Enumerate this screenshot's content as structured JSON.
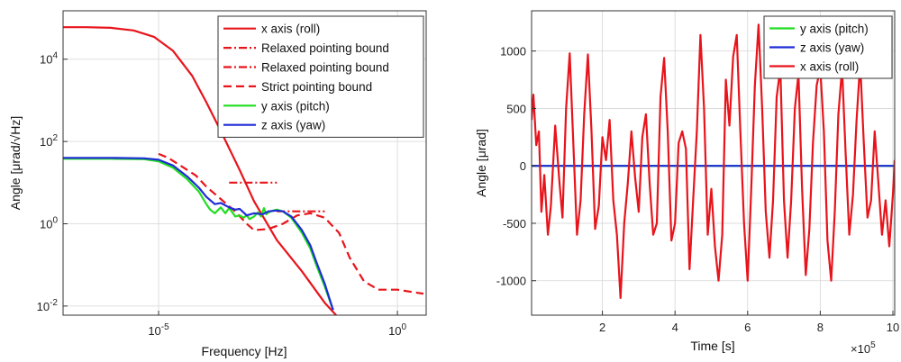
{
  "chart_data": [
    {
      "type": "line",
      "title": "",
      "xlabel": "Frequency [Hz]",
      "ylabel": "Angle [μrad/√Hz]",
      "xscale": "log",
      "yscale": "log",
      "xlim": [
        1e-07,
        4
      ],
      "ylim": [
        0.006,
        150000
      ],
      "grid": true,
      "legend_position": "top-right",
      "x_ticks": [
        {
          "value": 1e-05,
          "base": "10",
          "exp": "-5"
        },
        {
          "value": 1,
          "base": "10",
          "exp": "0"
        }
      ],
      "y_ticks": [
        {
          "value": 0.01,
          "base": "10",
          "exp": "-2"
        },
        {
          "value": 1,
          "base": "10",
          "exp": "0"
        },
        {
          "value": 100,
          "base": "10",
          "exp": "2"
        },
        {
          "value": 10000,
          "base": "10",
          "exp": "4"
        }
      ],
      "series": [
        {
          "name": "x axis (roll)",
          "color": "#e8141b",
          "style": "solid",
          "points": [
            [
              1e-07,
              60000
            ],
            [
              3e-07,
              60000
            ],
            [
              1e-06,
              58000
            ],
            [
              3e-06,
              50000
            ],
            [
              8e-06,
              35000
            ],
            [
              2e-05,
              16000
            ],
            [
              5e-05,
              4000
            ],
            [
              0.0001,
              900
            ],
            [
              0.0002,
              180
            ],
            [
              0.0005,
              20
            ],
            [
              0.001,
              3.5
            ],
            [
              0.003,
              0.4
            ],
            [
              0.01,
              0.07
            ],
            [
              0.03,
              0.012
            ],
            [
              0.06,
              0.005
            ]
          ]
        },
        {
          "name": "Relaxed pointing bound",
          "color": "#e8141b",
          "style": "dashdot",
          "points": [
            [
              0.0003,
              10
            ],
            [
              0.003,
              10
            ]
          ]
        },
        {
          "name": "Relaxed pointing bound",
          "color": "#e8141b",
          "style": "dashdot",
          "points": [
            [
              0.003,
              2
            ],
            [
              0.03,
              2
            ]
          ]
        },
        {
          "name": "Strict pointing bound",
          "color": "#e8141b",
          "style": "dashed",
          "points": [
            [
              1e-05,
              50
            ],
            [
              1.6e-05,
              40
            ],
            [
              3e-05,
              25
            ],
            [
              6e-05,
              15
            ],
            [
              0.0001,
              8
            ],
            [
              0.0002,
              4
            ],
            [
              0.0004,
              2
            ],
            [
              0.0007,
              1
            ],
            [
              0.001,
              0.7
            ],
            [
              0.002,
              0.75
            ],
            [
              0.004,
              1
            ],
            [
              0.008,
              1.6
            ],
            [
              0.015,
              1.8
            ],
            [
              0.03,
              1.4
            ],
            [
              0.06,
              0.6
            ],
            [
              0.1,
              0.15
            ],
            [
              0.2,
              0.04
            ],
            [
              0.4,
              0.025
            ],
            [
              1,
              0.025
            ],
            [
              2,
              0.022
            ],
            [
              3.5,
              0.02
            ]
          ]
        },
        {
          "name": "y axis (pitch)",
          "color": "#22dd22",
          "style": "solid",
          "points": [
            [
              1e-07,
              38
            ],
            [
              1e-06,
              38
            ],
            [
              5e-06,
              37
            ],
            [
              1e-05,
              33
            ],
            [
              2e-05,
              23
            ],
            [
              4e-05,
              12
            ],
            [
              7e-05,
              6
            ],
            [
              0.0001,
              3
            ],
            [
              0.00012,
              2.2
            ],
            [
              0.00015,
              1.8
            ],
            [
              0.0002,
              2.5
            ],
            [
              0.00025,
              1.8
            ],
            [
              0.0003,
              2.4
            ],
            [
              0.00035,
              1.9
            ],
            [
              0.0004,
              1.5
            ],
            [
              0.0005,
              1.6
            ],
            [
              0.0006,
              1.4
            ],
            [
              0.0007,
              1.6
            ],
            [
              0.0008,
              1.3
            ],
            [
              0.001,
              1.5
            ],
            [
              0.0012,
              1.9
            ],
            [
              0.0014,
              1.5
            ],
            [
              0.0016,
              2.4
            ],
            [
              0.0018,
              1.7
            ],
            [
              0.002,
              1.9
            ],
            [
              0.0025,
              2.1
            ],
            [
              0.003,
              2.2
            ],
            [
              0.004,
              2
            ],
            [
              0.006,
              1.4
            ],
            [
              0.01,
              0.6
            ],
            [
              0.015,
              0.25
            ],
            [
              0.02,
              0.1
            ],
            [
              0.03,
              0.03
            ],
            [
              0.045,
              0.008
            ]
          ]
        },
        {
          "name": "z axis (yaw)",
          "color": "#1e2dd6",
          "style": "solid",
          "points": [
            [
              1e-07,
              40
            ],
            [
              1e-06,
              40
            ],
            [
              5e-06,
              39
            ],
            [
              1e-05,
              36
            ],
            [
              2e-05,
              26
            ],
            [
              4e-05,
              14
            ],
            [
              7e-05,
              7.5
            ],
            [
              0.0001,
              4.5
            ],
            [
              0.00015,
              3
            ],
            [
              0.0002,
              3.2
            ],
            [
              0.0003,
              2.5
            ],
            [
              0.0004,
              2.2
            ],
            [
              0.0005,
              2.3
            ],
            [
              0.0007,
              1.6
            ],
            [
              0.001,
              1.8
            ],
            [
              0.0015,
              1.7
            ],
            [
              0.002,
              2
            ],
            [
              0.003,
              2.1
            ],
            [
              0.004,
              2
            ],
            [
              0.006,
              1.5
            ],
            [
              0.01,
              0.7
            ],
            [
              0.015,
              0.3
            ],
            [
              0.02,
              0.12
            ],
            [
              0.03,
              0.035
            ],
            [
              0.045,
              0.008
            ]
          ]
        }
      ]
    },
    {
      "type": "line",
      "title": "",
      "xlabel": "Time [s]",
      "ylabel": "Angle [μrad]",
      "x_multiplier": {
        "base": "×10",
        "exp": "5"
      },
      "xlim": [
        0.05,
        10.05
      ],
      "ylim": [
        -1300,
        1350
      ],
      "grid": true,
      "legend_position": "top-right",
      "x_ticks": [
        2,
        4,
        6,
        8,
        10
      ],
      "y_ticks": [
        -1000,
        -500,
        0,
        500,
        1000
      ],
      "series": [
        {
          "name": "y axis (pitch)",
          "color": "#22dd22",
          "style": "solid",
          "points": [
            [
              0.05,
              0
            ],
            [
              10.05,
              0
            ]
          ]
        },
        {
          "name": "z axis (yaw)",
          "color": "#1e2dd6",
          "style": "solid",
          "points": [
            [
              0.05,
              0
            ],
            [
              10.05,
              0
            ]
          ]
        },
        {
          "name": "x axis (roll)",
          "color": "#e8141b",
          "style": "solid",
          "points": [
            [
              0.05,
              400
            ],
            [
              0.1,
              620
            ],
            [
              0.18,
              180
            ],
            [
              0.25,
              300
            ],
            [
              0.32,
              -400
            ],
            [
              0.4,
              -80
            ],
            [
              0.5,
              -600
            ],
            [
              0.58,
              -350
            ],
            [
              0.7,
              350
            ],
            [
              0.82,
              -150
            ],
            [
              0.9,
              -450
            ],
            [
              1.0,
              500
            ],
            [
              1.1,
              980
            ],
            [
              1.2,
              200
            ],
            [
              1.3,
              -600
            ],
            [
              1.4,
              -300
            ],
            [
              1.5,
              450
            ],
            [
              1.6,
              970
            ],
            [
              1.7,
              300
            ],
            [
              1.8,
              -550
            ],
            [
              1.9,
              -350
            ],
            [
              2.0,
              250
            ],
            [
              2.1,
              50
            ],
            [
              2.2,
              400
            ],
            [
              2.3,
              -300
            ],
            [
              2.4,
              -600
            ],
            [
              2.5,
              -1150
            ],
            [
              2.6,
              -500
            ],
            [
              2.7,
              -150
            ],
            [
              2.8,
              300
            ],
            [
              2.9,
              -100
            ],
            [
              3.0,
              -400
            ],
            [
              3.1,
              250
            ],
            [
              3.2,
              450
            ],
            [
              3.3,
              -150
            ],
            [
              3.4,
              -600
            ],
            [
              3.5,
              -500
            ],
            [
              3.6,
              600
            ],
            [
              3.7,
              940
            ],
            [
              3.8,
              300
            ],
            [
              3.9,
              -650
            ],
            [
              4.0,
              -500
            ],
            [
              4.1,
              200
            ],
            [
              4.2,
              300
            ],
            [
              4.3,
              150
            ],
            [
              4.4,
              -900
            ],
            [
              4.5,
              -300
            ],
            [
              4.6,
              300
            ],
            [
              4.7,
              1140
            ],
            [
              4.8,
              500
            ],
            [
              4.9,
              -600
            ],
            [
              5.0,
              -200
            ],
            [
              5.1,
              -700
            ],
            [
              5.2,
              -1000
            ],
            [
              5.3,
              -600
            ],
            [
              5.4,
              750
            ],
            [
              5.5,
              350
            ],
            [
              5.6,
              950
            ],
            [
              5.7,
              1140
            ],
            [
              5.8,
              300
            ],
            [
              5.9,
              -500
            ],
            [
              6.0,
              -1000
            ],
            [
              6.1,
              -200
            ],
            [
              6.2,
              700
            ],
            [
              6.3,
              1230
            ],
            [
              6.4,
              500
            ],
            [
              6.5,
              -400
            ],
            [
              6.6,
              -800
            ],
            [
              6.7,
              -300
            ],
            [
              6.8,
              600
            ],
            [
              6.9,
              850
            ],
            [
              7.0,
              -300
            ],
            [
              7.1,
              -800
            ],
            [
              7.2,
              -300
            ],
            [
              7.3,
              500
            ],
            [
              7.4,
              800
            ],
            [
              7.5,
              -200
            ],
            [
              7.6,
              -950
            ],
            [
              7.7,
              -550
            ],
            [
              7.8,
              200
            ],
            [
              7.9,
              700
            ],
            [
              8.0,
              850
            ],
            [
              8.1,
              300
            ],
            [
              8.2,
              -650
            ],
            [
              8.3,
              -1000
            ],
            [
              8.4,
              -400
            ],
            [
              8.5,
              450
            ],
            [
              8.6,
              850
            ],
            [
              8.7,
              100
            ],
            [
              8.8,
              -600
            ],
            [
              8.9,
              -250
            ],
            [
              9.0,
              400
            ],
            [
              9.1,
              900
            ],
            [
              9.2,
              200
            ],
            [
              9.3,
              -450
            ],
            [
              9.4,
              -300
            ],
            [
              9.5,
              300
            ],
            [
              9.6,
              -150
            ],
            [
              9.7,
              -600
            ],
            [
              9.8,
              -300
            ],
            [
              9.9,
              -700
            ],
            [
              10.0,
              -250
            ],
            [
              10.05,
              50
            ]
          ]
        }
      ]
    }
  ]
}
